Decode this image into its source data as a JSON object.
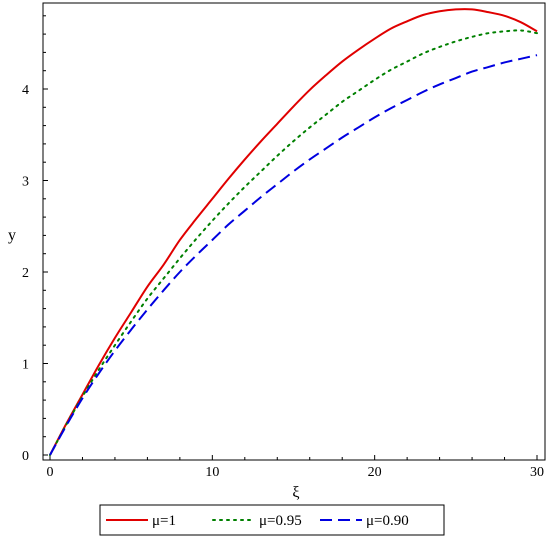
{
  "chart_data": {
    "type": "line",
    "title": "",
    "xlabel": "ξ",
    "ylabel": "y",
    "xlim": [
      0,
      30
    ],
    "ylim": [
      0,
      4.95
    ],
    "xticks": [
      0,
      10,
      20,
      30
    ],
    "xtick_labels": [
      "0",
      "10",
      "20",
      "30"
    ],
    "yticks": [
      0,
      1,
      2,
      3,
      4
    ],
    "ytick_labels": [
      "0",
      "1",
      "2",
      "3",
      "4"
    ],
    "grid": false,
    "legend_position": "bottom",
    "x": [
      0,
      1,
      2,
      3,
      4,
      5,
      6,
      7,
      8,
      9,
      10,
      11,
      12,
      13,
      14,
      15,
      16,
      17,
      18,
      19,
      20,
      21,
      22,
      23,
      24,
      25,
      26,
      27,
      28,
      29,
      30
    ],
    "series": [
      {
        "name": "μ=1",
        "color": "#e00000",
        "dash": "solid",
        "values": [
          0,
          0.34,
          0.66,
          0.98,
          1.28,
          1.56,
          1.84,
          2.08,
          2.35,
          2.58,
          2.8,
          3.02,
          3.23,
          3.43,
          3.62,
          3.81,
          3.99,
          4.15,
          4.3,
          4.43,
          4.55,
          4.66,
          4.74,
          4.81,
          4.85,
          4.87,
          4.87,
          4.84,
          4.8,
          4.73,
          4.63
        ]
      },
      {
        "name": "μ=0.95",
        "color": "#008000",
        "dash": "dotted",
        "values": [
          0,
          0.33,
          0.64,
          0.93,
          1.2,
          1.46,
          1.71,
          1.93,
          2.15,
          2.36,
          2.56,
          2.75,
          2.93,
          3.1,
          3.27,
          3.43,
          3.58,
          3.72,
          3.86,
          3.98,
          4.1,
          4.21,
          4.3,
          4.39,
          4.46,
          4.52,
          4.57,
          4.61,
          4.63,
          4.64,
          4.61
        ]
      },
      {
        "name": "μ=0.90",
        "color": "#0000e0",
        "dash": "dashed",
        "values": [
          0,
          0.32,
          0.62,
          0.89,
          1.14,
          1.37,
          1.59,
          1.8,
          2.0,
          2.18,
          2.35,
          2.52,
          2.67,
          2.82,
          2.96,
          3.1,
          3.23,
          3.35,
          3.47,
          3.58,
          3.69,
          3.79,
          3.88,
          3.97,
          4.05,
          4.12,
          4.19,
          4.24,
          4.29,
          4.33,
          4.37
        ]
      }
    ]
  }
}
